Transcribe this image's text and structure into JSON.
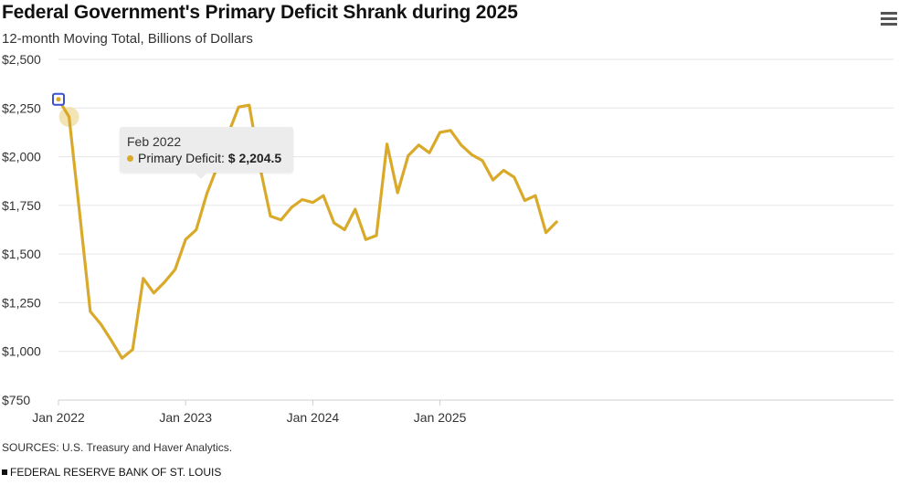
{
  "header": {
    "title": "Federal Government's Primary Deficit Shrank during 2025",
    "subtitle": "12-month Moving Total, Billions of Dollars",
    "menu_icon": "hamburger-menu-icon"
  },
  "tooltip": {
    "date": "Feb 2022",
    "series_label": "Primary Deficit:",
    "value_text": "$ 2,204.5"
  },
  "footer": {
    "source": "SOURCES: U.S. Treasury and Haver Analytics.",
    "publisher": "FEDERAL RESERVE BANK OF ST. LOUIS"
  },
  "colors": {
    "line": "#d9a92a",
    "grid": "#e6e6e6",
    "axis": "#cfcfcf",
    "highlight_box": "#3a4fd1",
    "hover_halo": "#f0dfa8"
  },
  "chart_data": {
    "type": "line",
    "title": "Federal Government's Primary Deficit Shrank during 2025",
    "subtitle": "12-month Moving Total, Billions of Dollars",
    "xlabel": "",
    "ylabel": "",
    "ylim": [
      750,
      2500
    ],
    "yticks": [
      750,
      1000,
      1250,
      1500,
      1750,
      2000,
      2250,
      2500
    ],
    "ytick_labels": [
      "$750",
      "$1,000",
      "$1,250",
      "$1,500",
      "$1,750",
      "$2,000",
      "$2,250",
      "$2,500"
    ],
    "xticks": [
      "2022-01",
      "2023-01",
      "2024-01",
      "2025-01"
    ],
    "xtick_labels": [
      "Jan 2022",
      "Jan 2023",
      "Jan 2024",
      "Jan 2025"
    ],
    "grid": true,
    "legend": "none",
    "highlighted_point": "2022-01",
    "hovered_point": "2022-02",
    "series": [
      {
        "name": "Primary Deficit",
        "x": [
          "2022-01",
          "2022-02",
          "2022-03",
          "2022-04",
          "2022-05",
          "2022-06",
          "2022-07",
          "2022-08",
          "2022-09",
          "2022-10",
          "2022-11",
          "2022-12",
          "2023-01",
          "2023-02",
          "2023-03",
          "2023-04",
          "2023-05",
          "2023-06",
          "2023-07",
          "2023-08",
          "2023-09",
          "2023-10",
          "2023-11",
          "2023-12",
          "2024-01",
          "2024-02",
          "2024-03",
          "2024-04",
          "2024-05",
          "2024-06",
          "2024-07",
          "2024-08",
          "2024-09",
          "2024-10",
          "2024-11",
          "2024-12",
          "2025-01",
          "2025-02",
          "2025-03",
          "2025-04",
          "2025-05",
          "2025-06",
          "2025-07",
          "2025-08",
          "2025-09",
          "2025-10",
          "2025-11",
          "2025-12"
        ],
        "values": [
          2295,
          2204.5,
          1710,
          1205,
          1140,
          1055,
          965,
          1010,
          1375,
          1300,
          1355,
          1420,
          1575,
          1625,
          1810,
          1950,
          2115,
          2255,
          2265,
          1950,
          1695,
          1675,
          1740,
          1780,
          1765,
          1800,
          1660,
          1625,
          1730,
          1575,
          1595,
          2065,
          1815,
          2005,
          2060,
          2020,
          2125,
          2135,
          2060,
          2010,
          1980,
          1880,
          1930,
          1895,
          1775,
          1800,
          1610,
          1665
        ]
      }
    ]
  }
}
